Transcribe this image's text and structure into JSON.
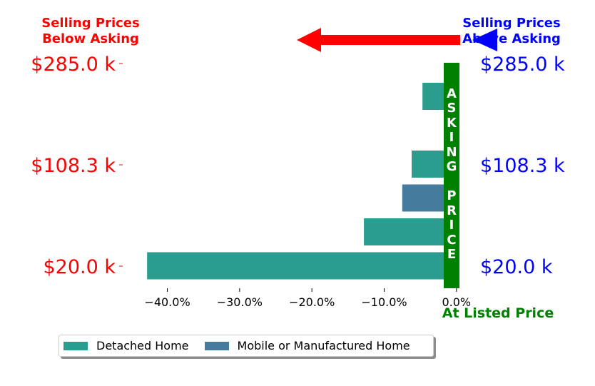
{
  "chart_data": {
    "type": "bar",
    "orientation": "horizontal",
    "left_annotation": "Selling Prices\nBelow Asking",
    "right_annotation": "Selling Prices\nAbove Asking",
    "vertical_bar_label": "ASKING PRICE",
    "bottom_label": "At Listed Price",
    "left_tick_labels": [
      "$285.0 k",
      "$108.3 k",
      "$20.0 k"
    ],
    "right_tick_labels": [
      "$285.0 k",
      "$108.3 k",
      "$20.0 k"
    ],
    "x_tick_labels": [
      "−40.0%",
      "−30.0%",
      "−20.0%",
      "−10.0%",
      "0.0%"
    ],
    "x_ticks": [
      -40,
      -30,
      -20,
      -10,
      0
    ],
    "xlim": [
      -44,
      1.5
    ],
    "legend": {
      "placement": "bottom",
      "entries": [
        {
          "name": "Detached Home",
          "color": "#2a9d8f"
        },
        {
          "name": "Mobile or Manufactured Home",
          "color": "#457b9d"
        }
      ]
    },
    "series": [
      {
        "name": "Detached Home",
        "color": "#2a9d8f",
        "bars": [
          {
            "row": 1,
            "value": -4.7
          },
          {
            "row": 3,
            "value": -6.2
          },
          {
            "row": 5,
            "value": -12.8
          },
          {
            "row": 6,
            "value": -42.8
          }
        ]
      },
      {
        "name": "Mobile or Manufactured Home",
        "color": "#457b9d",
        "bars": [
          {
            "row": 4,
            "value": -7.5
          }
        ]
      }
    ],
    "colors": {
      "below": "#ff0000",
      "above": "#0000ff",
      "asking": "#008000"
    }
  }
}
